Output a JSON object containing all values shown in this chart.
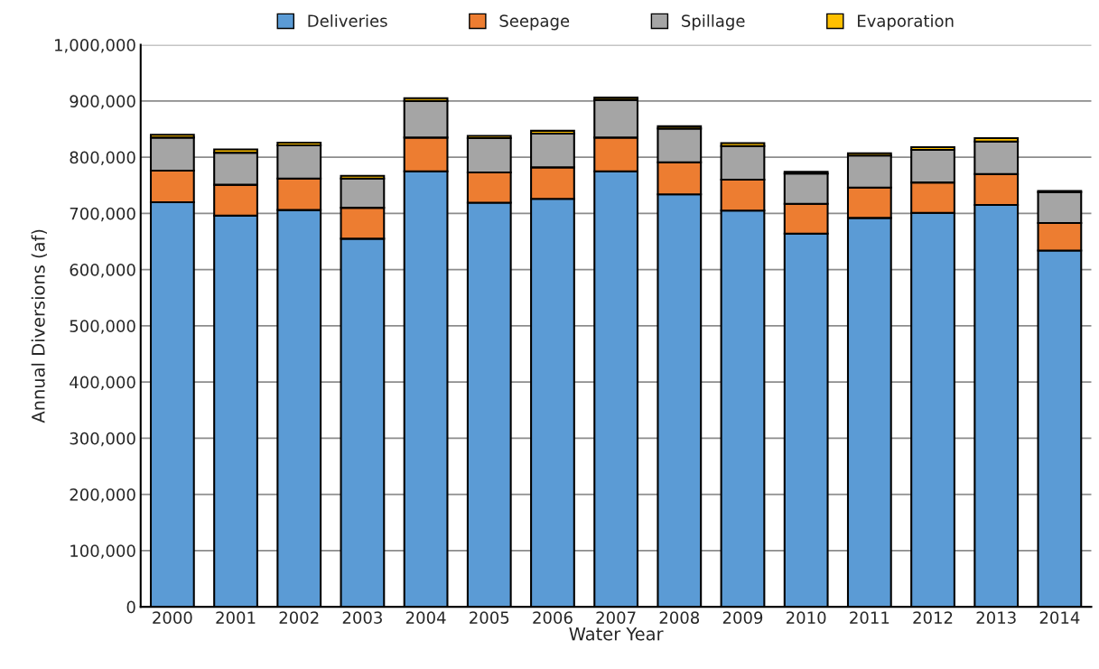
{
  "chart_data": {
    "type": "bar",
    "stacked": true,
    "xlabel": "Water Year",
    "ylabel": "Annual Diversions (af)",
    "categories": [
      "2000",
      "2001",
      "2002",
      "2003",
      "2004",
      "2005",
      "2006",
      "2007",
      "2008",
      "2009",
      "2010",
      "2011",
      "2012",
      "2013",
      "2014"
    ],
    "series": [
      {
        "name": "Deliveries",
        "color": "#5b9bd5",
        "values": [
          720000,
          696000,
          706000,
          655000,
          775000,
          719000,
          726000,
          775000,
          734000,
          705000,
          664000,
          692000,
          701000,
          715000,
          634000
        ]
      },
      {
        "name": "Seepage",
        "color": "#ed7d31",
        "values": [
          56000,
          55000,
          56000,
          55000,
          60000,
          54000,
          56000,
          60000,
          57000,
          55000,
          53000,
          54000,
          54000,
          55000,
          49000
        ]
      },
      {
        "name": "Spillage",
        "color": "#a5a5a5",
        "values": [
          59000,
          57000,
          59000,
          52000,
          65000,
          61000,
          60000,
          67000,
          60000,
          60000,
          54000,
          57000,
          58000,
          58000,
          55000
        ]
      },
      {
        "name": "Evaporation",
        "color": "#ffc000",
        "values": [
          5000,
          6000,
          5000,
          5000,
          5000,
          4000,
          5000,
          4000,
          4000,
          5000,
          3000,
          4000,
          5000,
          6000,
          2000
        ]
      }
    ],
    "ylim": [
      0,
      1000000
    ],
    "yticks": [
      {
        "value": 0,
        "label": "0"
      },
      {
        "value": 100000,
        "label": "100,000"
      },
      {
        "value": 200000,
        "label": "200,000"
      },
      {
        "value": 300000,
        "label": "300,000"
      },
      {
        "value": 400000,
        "label": "400,000"
      },
      {
        "value": 500000,
        "label": "500,000"
      },
      {
        "value": 600000,
        "label": "600,000"
      },
      {
        "value": 700000,
        "label": "700,000"
      },
      {
        "value": 800000,
        "label": "800,000"
      },
      {
        "value": 900000,
        "label": "900,000"
      },
      {
        "value": 1000000,
        "label": "1,000,000"
      }
    ],
    "grid": "y",
    "legend": "top"
  }
}
